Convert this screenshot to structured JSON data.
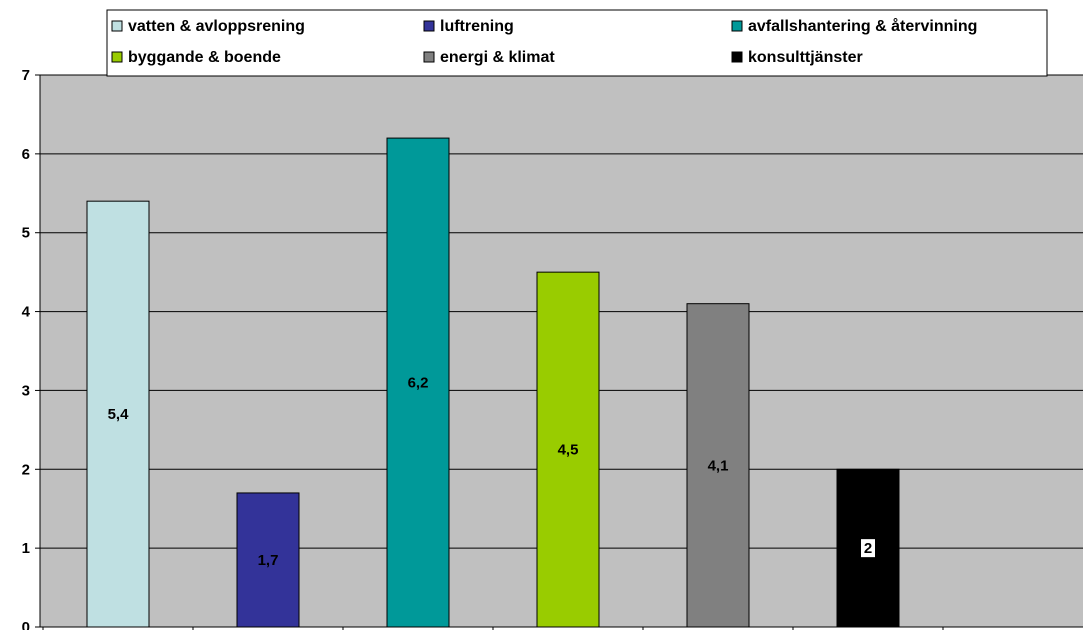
{
  "chart_data": {
    "type": "bar",
    "title": "",
    "xlabel": "",
    "ylabel": "",
    "ylim": [
      0,
      7
    ],
    "yticks": [
      "0",
      "1",
      "2",
      "3",
      "4",
      "5",
      "6",
      "7"
    ],
    "grid": true,
    "legend_position": "top",
    "plot_background": "#c0c0c0",
    "series": [
      {
        "name": "vatten & avloppsrening",
        "value": 5.4,
        "label": "5,4",
        "color": "#bfe0e2",
        "label_color": "#000000",
        "label_bg": ""
      },
      {
        "name": "luftrening",
        "value": 1.7,
        "label": "1,7",
        "color": "#333399",
        "label_color": "#000000",
        "label_bg": ""
      },
      {
        "name": "avfallshantering & återvinning",
        "value": 6.2,
        "label": "6,2",
        "color": "#009999",
        "label_color": "#000000",
        "label_bg": ""
      },
      {
        "name": "byggande & boende",
        "value": 4.5,
        "label": "4,5",
        "color": "#99cc00",
        "label_color": "#000000",
        "label_bg": ""
      },
      {
        "name": "energi & klimat",
        "value": 4.1,
        "label": "4,1",
        "color": "#808080",
        "label_color": "#000000",
        "label_bg": ""
      },
      {
        "name": "konsulttjänster",
        "value": 2,
        "label": "2",
        "color": "#000000",
        "label_color": "#000000",
        "label_bg": "#ffffff"
      }
    ]
  }
}
